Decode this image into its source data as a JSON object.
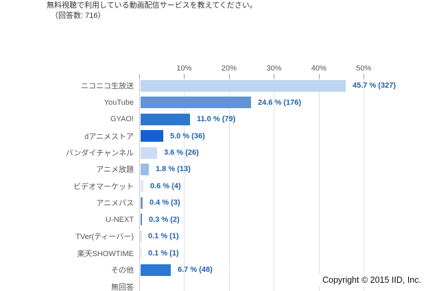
{
  "header": {
    "title": "無料視聴で利用している動画配信サービスを教えてください。",
    "subtitle": "（回答数: 716）"
  },
  "footer": {
    "copyright": "Copyright © 2015 IID, Inc."
  },
  "chart_data": {
    "type": "bar",
    "orientation": "horizontal",
    "title": "無料視聴で利用している動画配信サービスを教えてください。",
    "subtitle_respondents": "（回答数: 716）",
    "x_ticks": [
      "10%",
      "20%",
      "30%",
      "40%",
      "50%"
    ],
    "xlim": [
      0,
      60
    ],
    "grid": true,
    "categories": [
      "ニコニコ生放送",
      "YouTube",
      "GYAO!",
      "dアニメストア",
      "バンダイチャンネル",
      "アニメ放題",
      "ビデオマーケット",
      "アニメパス",
      "U-NEXT",
      "TVer(ティーバー)",
      "楽天SHOWTIME",
      "その他",
      "無回答"
    ],
    "values_pct": [
      45.7,
      24.6,
      11.0,
      5.0,
      3.6,
      1.8,
      0.6,
      0.4,
      0.3,
      0.1,
      0.1,
      6.7,
      null
    ],
    "counts": [
      327,
      176,
      79,
      36,
      26,
      13,
      4,
      3,
      2,
      1,
      1,
      48,
      null
    ],
    "value_labels": [
      "45.7 % (327)",
      "24.6 % (176)",
      "11.0 % (79)",
      "5.0 % (36)",
      "3.6 % (26)",
      "1.8 % (13)",
      "0.6 % (4)",
      "0.4 % (3)",
      "0.3 % (2)",
      "0.1 % (1)",
      "0.1 % (1)",
      "6.7 % (48)",
      ""
    ],
    "bar_colors": [
      "#bdd5f1",
      "#6094d6",
      "#2e77d0",
      "#1261ce",
      "#ccddf3",
      "#98bce7",
      "#dfe9f7",
      "#8095ad",
      "#5b85c0",
      "#a9c4e6",
      "#cfdef2",
      "#2b79d3",
      null
    ],
    "colors": {
      "value_label": "#1d5fa9",
      "category_label": "#555555",
      "gridline": "#dadfe4",
      "axis_line": "#cccccc"
    }
  }
}
